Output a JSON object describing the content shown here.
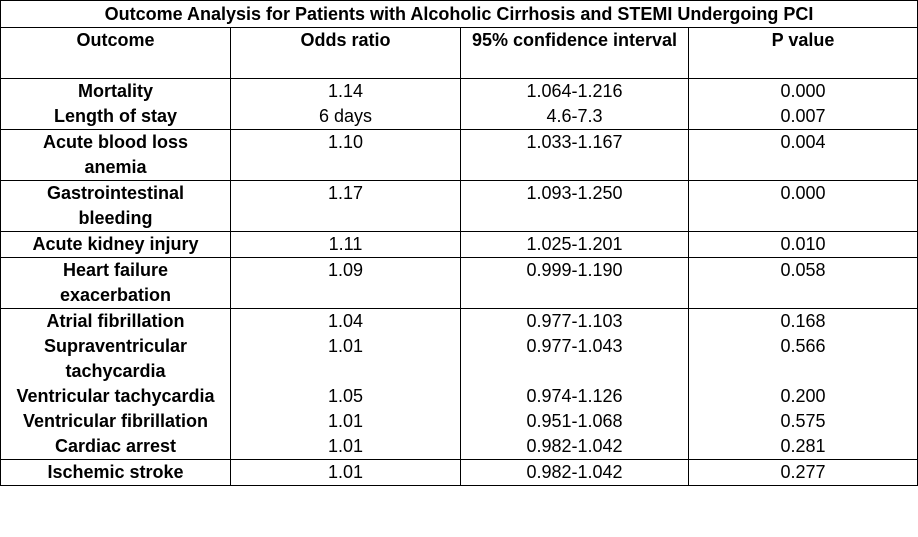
{
  "title": "Outcome Analysis for Patients with Alcoholic Cirrhosis and STEMI Undergoing PCI",
  "table": {
    "header": [
      "Outcome",
      "Odds ratio",
      "95% confidence interval",
      "P value"
    ],
    "rows": [
      [
        "Mortality",
        "1.14",
        "1.064-1.216",
        "0.000"
      ],
      [
        "Length of stay",
        "6 days",
        "4.6-7.3",
        "0.007"
      ],
      [
        "Acute blood loss anemia",
        "1.10",
        "1.033-1.167",
        "0.004"
      ],
      [
        "Gastrointestinal bleeding",
        "1.17",
        "1.093-1.250",
        "0.000"
      ],
      [
        "Acute kidney injury",
        "1.11",
        "1.025-1.201",
        "0.010"
      ],
      [
        "Heart failure exacerbation",
        "1.09",
        "0.999-1.190",
        "0.058"
      ],
      [
        "Atrial fibrillation",
        "1.04",
        "0.977-1.103",
        "0.168"
      ],
      [
        "Supraventricular tachycardia",
        "1.01",
        "0.977-1.043",
        "0.566"
      ],
      [
        "Ventricular tachycardia",
        "1.05",
        "0.974-1.126",
        "0.200"
      ],
      [
        "Ventricular fibrillation",
        "1.01",
        "0.951-1.068",
        "0.575"
      ],
      [
        "Cardiac arrest",
        "1.01",
        "0.982-1.042",
        "0.281"
      ],
      [
        "Ischemic stroke",
        "1.01",
        "0.982-1.042",
        "0.277"
      ]
    ]
  }
}
